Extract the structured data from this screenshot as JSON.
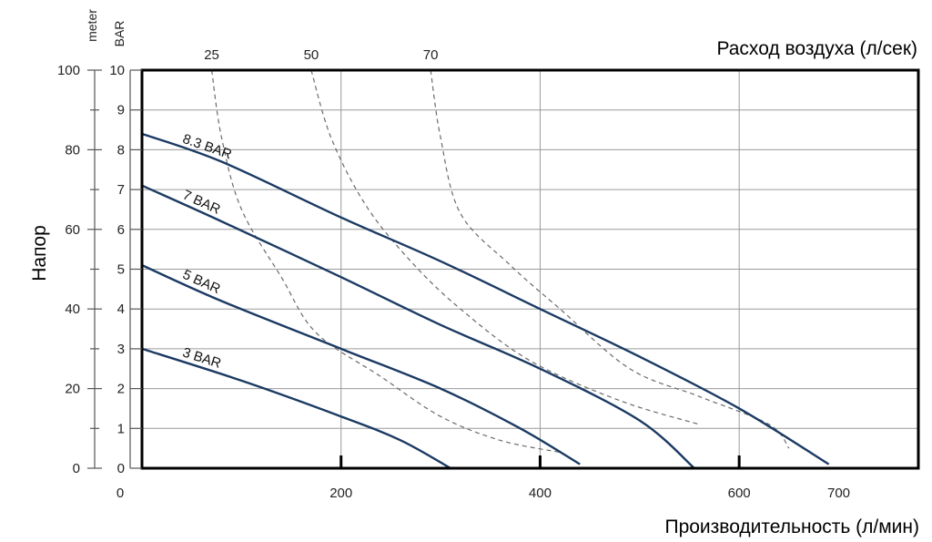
{
  "chart_data": {
    "type": "line",
    "xlabel_bottom": "Производительность (л/мин)",
    "xlabel_top": "Расход воздуха (л/сек)",
    "ylabel": "Напор",
    "y_unit_meter": "meter",
    "y_unit_bar": "BAR",
    "xlim": [
      0,
      780
    ],
    "ylim_bar": [
      0,
      10
    ],
    "ylim_meter": [
      0,
      100
    ],
    "x_ticks": [
      {
        "value": 0,
        "label": "0"
      },
      {
        "value": 200,
        "label": "200"
      },
      {
        "value": 400,
        "label": "400"
      },
      {
        "value": 600,
        "label": "600"
      },
      {
        "value": 700,
        "label": "700"
      }
    ],
    "bar_ticks": [
      {
        "value": 0,
        "label": "0"
      },
      {
        "value": 1,
        "label": "1"
      },
      {
        "value": 2,
        "label": "2"
      },
      {
        "value": 3,
        "label": "3"
      },
      {
        "value": 4,
        "label": "4"
      },
      {
        "value": 5,
        "label": "5"
      },
      {
        "value": 6,
        "label": "6"
      },
      {
        "value": 7,
        "label": "7"
      },
      {
        "value": 8,
        "label": "8"
      },
      {
        "value": 9,
        "label": "9"
      },
      {
        "value": 10,
        "label": "10"
      }
    ],
    "meter_ticks": [
      {
        "value": 0,
        "label": "0"
      },
      {
        "value": 20,
        "label": "20"
      },
      {
        "value": 40,
        "label": "40"
      },
      {
        "value": 60,
        "label": "60"
      },
      {
        "value": 80,
        "label": "80"
      },
      {
        "value": 100,
        "label": "100"
      }
    ],
    "grid": true,
    "series": [
      {
        "name": "8.3 BAR",
        "points": [
          [
            0,
            8.4
          ],
          [
            80,
            7.7
          ],
          [
            200,
            6.3
          ],
          [
            300,
            5.2
          ],
          [
            400,
            4.0
          ],
          [
            500,
            2.8
          ],
          [
            600,
            1.5
          ],
          [
            690,
            0.1
          ]
        ]
      },
      {
        "name": "7 BAR",
        "points": [
          [
            0,
            7.1
          ],
          [
            80,
            6.2
          ],
          [
            200,
            4.8
          ],
          [
            300,
            3.6
          ],
          [
            400,
            2.5
          ],
          [
            500,
            1.2
          ],
          [
            555,
            0.0
          ]
        ]
      },
      {
        "name": "5 BAR",
        "points": [
          [
            0,
            5.1
          ],
          [
            80,
            4.2
          ],
          [
            200,
            3.0
          ],
          [
            300,
            2.0
          ],
          [
            380,
            1.0
          ],
          [
            440,
            0.1
          ]
        ]
      },
      {
        "name": "3 BAR",
        "points": [
          [
            0,
            3.0
          ],
          [
            100,
            2.2
          ],
          [
            200,
            1.3
          ],
          [
            260,
            0.7
          ],
          [
            310,
            0.0
          ]
        ]
      }
    ],
    "air_flow_curves": [
      {
        "name": "25",
        "points": [
          [
            70,
            10.0
          ],
          [
            80,
            8.3
          ],
          [
            100,
            6.5
          ],
          [
            140,
            4.8
          ],
          [
            175,
            3.4
          ],
          [
            240,
            2.3
          ],
          [
            300,
            1.3
          ],
          [
            360,
            0.7
          ],
          [
            420,
            0.4
          ]
        ]
      },
      {
        "name": "50",
        "points": [
          [
            170,
            10.0
          ],
          [
            190,
            8.3
          ],
          [
            225,
            6.6
          ],
          [
            270,
            5.2
          ],
          [
            320,
            4.0
          ],
          [
            390,
            2.7
          ],
          [
            480,
            1.7
          ],
          [
            560,
            1.1
          ]
        ]
      },
      {
        "name": "70",
        "points": [
          [
            290,
            10.0
          ],
          [
            300,
            8.3
          ],
          [
            320,
            6.4
          ],
          [
            370,
            5.1
          ],
          [
            420,
            4.0
          ],
          [
            490,
            2.5
          ],
          [
            560,
            1.8
          ],
          [
            630,
            1.1
          ],
          [
            650,
            0.5
          ]
        ]
      }
    ]
  }
}
